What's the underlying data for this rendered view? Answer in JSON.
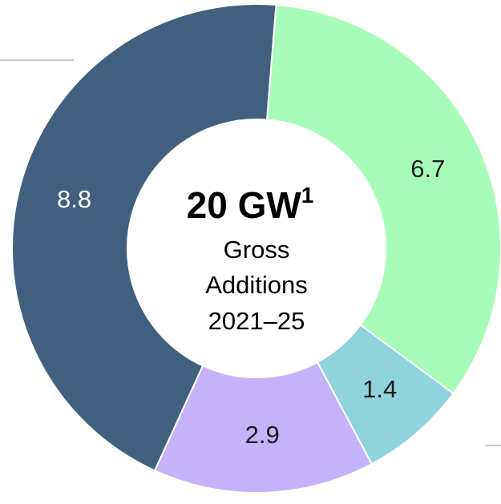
{
  "chart_data": {
    "type": "donut",
    "title": "20 GW",
    "title_superscript": "1",
    "subtitle": [
      "Gross",
      "Additions",
      "2021–25"
    ],
    "categories": [
      null,
      null,
      null,
      null
    ],
    "values": [
      6.7,
      1.4,
      2.9,
      8.8
    ],
    "colors": [
      "#a8fcb9",
      "#8fd3dc",
      "#c5b3fa",
      "#41607f"
    ],
    "label_colors": [
      "#1a1a1a",
      "#1a1a1a",
      "#1a1a1a",
      "#ffffff"
    ]
  }
}
